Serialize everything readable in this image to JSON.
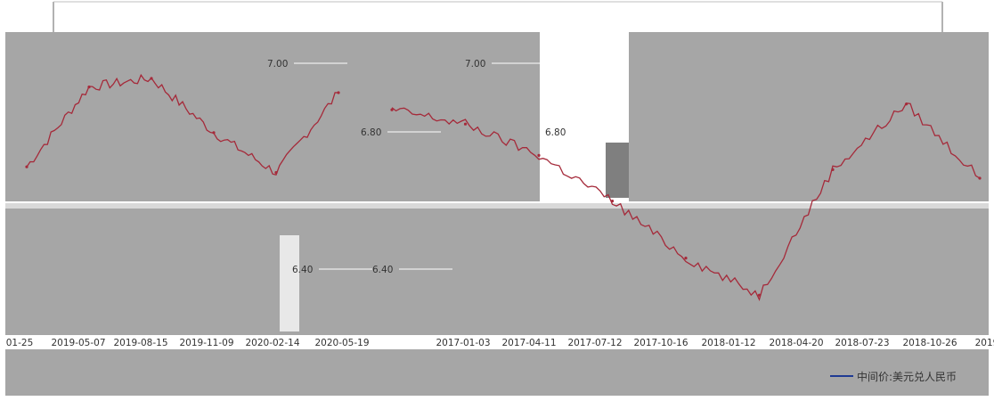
{
  "chart_data": [
    {
      "type": "line",
      "title": "",
      "xlabel": "",
      "ylabel": "",
      "ylim": [
        6.2,
        7.2
      ],
      "yticks": [
        "7.00",
        "6.80",
        "6.40"
      ],
      "x": [
        "01-25",
        "2019-05-07",
        "2019-08-15",
        "2019-11-09",
        "2020-02-14",
        "2020-05-19"
      ],
      "series": [
        {
          "name": "中间价:美元兑人民币",
          "color": "#a52a3a",
          "values": [
            6.74,
            7.02,
            7.05,
            6.86,
            6.72,
            7.0
          ]
        }
      ],
      "grid": false,
      "legend": "none"
    },
    {
      "type": "line",
      "title": "",
      "xlabel": "",
      "ylabel": "",
      "ylim": [
        6.2,
        7.2
      ],
      "yticks": [
        "7.00",
        "6.80",
        "6.40"
      ],
      "x": [
        "2017-01-03",
        "2017-04-11",
        "2017-07-12",
        "2017-10-16",
        "2018-01-12",
        "2018-04-20",
        "2018-07-23",
        "2018-10-26",
        "2019"
      ],
      "series": [
        {
          "name": "中间价:美元兑人民币",
          "color": "#a52a3a",
          "values": [
            6.94,
            6.89,
            6.78,
            6.62,
            6.42,
            6.29,
            6.73,
            6.96,
            6.7
          ]
        }
      ],
      "grid": false,
      "legend": "bottom-right"
    }
  ],
  "legend_label": "中间价:美元兑人民币",
  "colors": {
    "line": "#a52a3a",
    "line_low": "#2b3f8f",
    "line_mid": "#3a8f3a",
    "panel_gray": "#a6a6a6",
    "panel_dark": "#7f7f7f",
    "legend_line": "#1f3a93"
  }
}
